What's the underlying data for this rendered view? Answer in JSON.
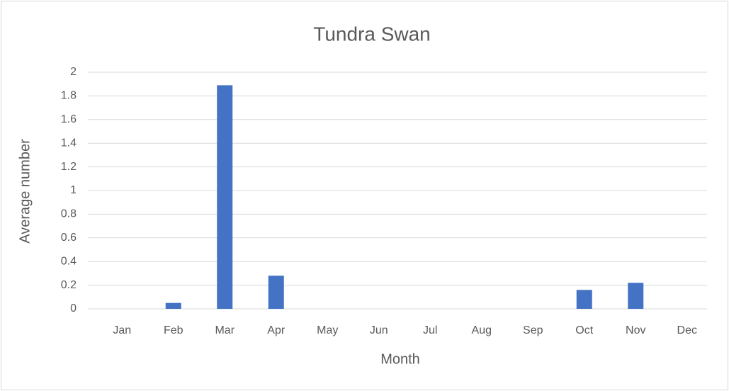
{
  "chart_data": {
    "type": "bar",
    "title": "Tundra Swan",
    "categories": [
      "Jan",
      "Feb",
      "Mar",
      "Apr",
      "May",
      "Jun",
      "Jul",
      "Aug",
      "Sep",
      "Oct",
      "Nov",
      "Dec"
    ],
    "values": [
      0,
      0.05,
      1.89,
      0.28,
      0,
      0,
      0,
      0,
      0,
      0.16,
      0.22,
      0
    ],
    "color": "#4472c4",
    "x_label": "Month",
    "y_label": "Average number",
    "ylim": [
      0,
      2
    ],
    "yticks": [
      0,
      0.2,
      0.4,
      0.6,
      0.8,
      1,
      1.2,
      1.4,
      1.6,
      1.8,
      2
    ],
    "grid": true
  }
}
